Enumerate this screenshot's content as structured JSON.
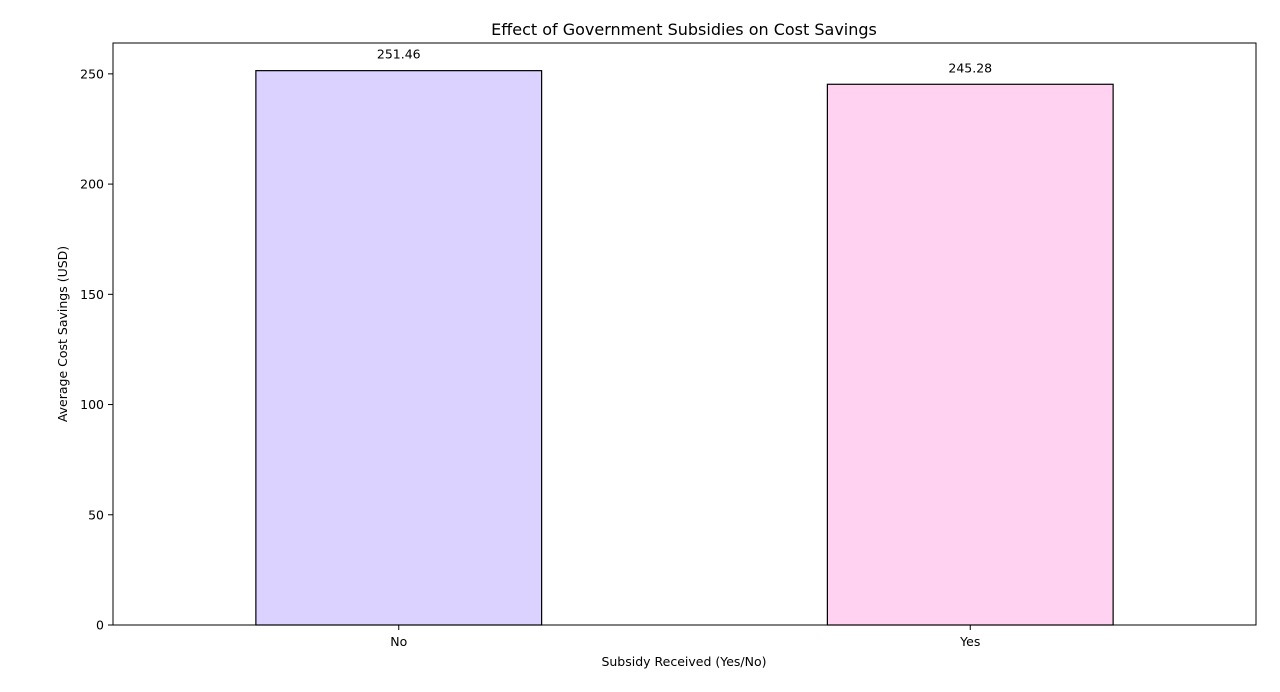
{
  "chart_data": {
    "type": "bar",
    "title": "Effect of Government Subsidies on Cost Savings",
    "xlabel": "Subsidy Received (Yes/No)",
    "ylabel": "Average Cost Savings (USD)",
    "categories": [
      "No",
      "Yes"
    ],
    "values": [
      251.46,
      245.28
    ],
    "data_labels": [
      "251.46",
      "245.28"
    ],
    "colors": [
      "#dcd2ff",
      "#ffd2f2"
    ],
    "edge_color": "#000000",
    "ylim": [
      0,
      264
    ],
    "yticks": [
      0,
      50,
      100,
      150,
      200,
      250
    ],
    "grid": false,
    "legend": "none"
  }
}
